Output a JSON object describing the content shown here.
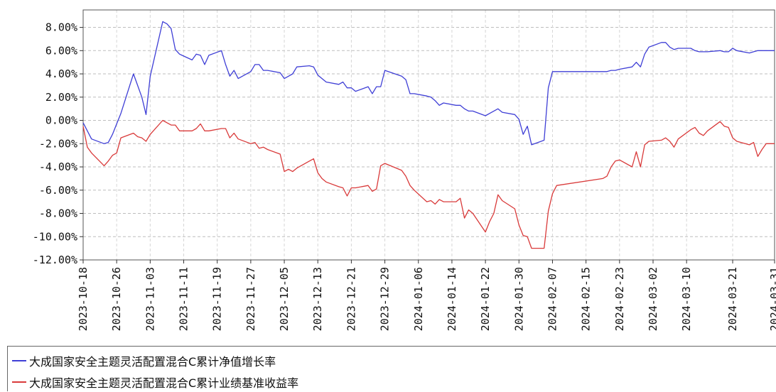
{
  "chart_data": {
    "type": "line",
    "title": "",
    "xlabel": "",
    "ylabel": "",
    "y_unit": "%",
    "ylim": [
      -12,
      9.5
    ],
    "xlim": [
      "2023-10-18",
      "2024-03-31"
    ],
    "yticks": [
      8,
      6,
      4,
      2,
      0,
      -2,
      -4,
      -6,
      -8,
      -10,
      -12
    ],
    "ytick_labels": [
      "8.00%",
      "6.00%",
      "4.00%",
      "2.00%",
      "0.00%",
      "-2.00%",
      "-4.00%",
      "-6.00%",
      "-8.00%",
      "-10.00%",
      "-12.00%"
    ],
    "xtick_labels": [
      "2023-10-18",
      "2023-10-26",
      "2023-11-03",
      "2023-11-11",
      "2023-11-19",
      "2023-11-27",
      "2023-12-05",
      "2023-12-13",
      "2023-12-21",
      "2023-12-29",
      "2024-01-06",
      "2024-01-14",
      "2024-01-22",
      "2024-01-30",
      "2024-02-07",
      "2024-02-15",
      "2024-02-23",
      "2024-03-02",
      "2024-03-10",
      "2024-03-21",
      "2024-03-31"
    ],
    "grid": true,
    "legend_position": "bottom",
    "series": [
      {
        "name": "大成国家安全主题灵活配置混合C累计净值增长率",
        "color": "#3f3fd6",
        "points": [
          [
            "2023-10-18",
            -0.2
          ],
          [
            "2023-10-20",
            -1.6
          ],
          [
            "2023-10-23",
            -2.0
          ],
          [
            "2023-10-24",
            -1.9
          ],
          [
            "2023-10-25",
            -1.2
          ],
          [
            "2023-10-26",
            -0.3
          ],
          [
            "2023-10-27",
            0.6
          ],
          [
            "2023-10-30",
            4.0
          ],
          [
            "2023-10-31",
            3.0
          ],
          [
            "2023-11-01",
            2.0
          ],
          [
            "2023-11-02",
            0.5
          ],
          [
            "2023-11-03",
            3.8
          ],
          [
            "2023-11-06",
            8.5
          ],
          [
            "2023-11-07",
            8.3
          ],
          [
            "2023-11-08",
            7.9
          ],
          [
            "2023-11-09",
            6.1
          ],
          [
            "2023-11-10",
            5.7
          ],
          [
            "2023-11-13",
            5.2
          ],
          [
            "2023-11-14",
            5.7
          ],
          [
            "2023-11-15",
            5.6
          ],
          [
            "2023-11-16",
            4.8
          ],
          [
            "2023-11-17",
            5.6
          ],
          [
            "2023-11-20",
            6.0
          ],
          [
            "2023-11-21",
            4.8
          ],
          [
            "2023-11-22",
            3.8
          ],
          [
            "2023-11-23",
            4.3
          ],
          [
            "2023-11-24",
            3.6
          ],
          [
            "2023-11-27",
            4.2
          ],
          [
            "2023-11-28",
            4.8
          ],
          [
            "2023-11-29",
            4.8
          ],
          [
            "2023-11-30",
            4.3
          ],
          [
            "2023-12-01",
            4.3
          ],
          [
            "2023-12-04",
            4.1
          ],
          [
            "2023-12-05",
            3.6
          ],
          [
            "2023-12-06",
            3.8
          ],
          [
            "2023-12-07",
            4.0
          ],
          [
            "2023-12-08",
            4.6
          ],
          [
            "2023-12-11",
            4.7
          ],
          [
            "2023-12-12",
            4.6
          ],
          [
            "2023-12-13",
            3.9
          ],
          [
            "2023-12-14",
            3.6
          ],
          [
            "2023-12-15",
            3.3
          ],
          [
            "2023-12-18",
            3.1
          ],
          [
            "2023-12-19",
            3.3
          ],
          [
            "2023-12-20",
            2.8
          ],
          [
            "2023-12-21",
            2.8
          ],
          [
            "2023-12-22",
            2.5
          ],
          [
            "2023-12-25",
            2.9
          ],
          [
            "2023-12-26",
            2.3
          ],
          [
            "2023-12-27",
            2.9
          ],
          [
            "2023-12-28",
            2.9
          ],
          [
            "2023-12-29",
            4.3
          ],
          [
            "2024-01-02",
            3.8
          ],
          [
            "2024-01-03",
            3.5
          ],
          [
            "2024-01-04",
            2.3
          ],
          [
            "2024-01-05",
            2.3
          ],
          [
            "2024-01-08",
            2.1
          ],
          [
            "2024-01-09",
            2.0
          ],
          [
            "2024-01-10",
            1.7
          ],
          [
            "2024-01-11",
            1.3
          ],
          [
            "2024-01-12",
            1.5
          ],
          [
            "2024-01-15",
            1.3
          ],
          [
            "2024-01-16",
            1.3
          ],
          [
            "2024-01-17",
            1.0
          ],
          [
            "2024-01-18",
            0.8
          ],
          [
            "2024-01-19",
            0.8
          ],
          [
            "2024-01-22",
            0.4
          ],
          [
            "2024-01-23",
            0.6
          ],
          [
            "2024-01-24",
            0.8
          ],
          [
            "2024-01-25",
            1.0
          ],
          [
            "2024-01-26",
            0.7
          ],
          [
            "2024-01-29",
            0.5
          ],
          [
            "2024-01-30",
            0.1
          ],
          [
            "2024-01-31",
            -1.2
          ],
          [
            "2024-02-01",
            -0.5
          ],
          [
            "2024-02-02",
            -2.1
          ],
          [
            "2024-02-05",
            -1.7
          ],
          [
            "2024-02-06",
            2.8
          ],
          [
            "2024-02-07",
            4.2
          ],
          [
            "2024-02-08",
            4.2
          ],
          [
            "2024-02-19",
            4.2
          ],
          [
            "2024-02-20",
            4.2
          ],
          [
            "2024-02-21",
            4.3
          ],
          [
            "2024-02-22",
            4.3
          ],
          [
            "2024-02-23",
            4.4
          ],
          [
            "2024-02-26",
            4.6
          ],
          [
            "2024-02-27",
            5.0
          ],
          [
            "2024-02-28",
            4.6
          ],
          [
            "2024-02-29",
            5.7
          ],
          [
            "2024-03-01",
            6.3
          ],
          [
            "2024-03-04",
            6.7
          ],
          [
            "2024-03-05",
            6.7
          ],
          [
            "2024-03-06",
            6.3
          ],
          [
            "2024-03-07",
            6.1
          ],
          [
            "2024-03-08",
            6.2
          ],
          [
            "2024-03-11",
            6.2
          ],
          [
            "2024-03-12",
            6.0
          ],
          [
            "2024-03-13",
            5.9
          ],
          [
            "2024-03-14",
            5.9
          ],
          [
            "2024-03-15",
            5.9
          ],
          [
            "2024-03-18",
            6.0
          ],
          [
            "2024-03-19",
            5.9
          ],
          [
            "2024-03-20",
            5.9
          ],
          [
            "2024-03-21",
            6.2
          ],
          [
            "2024-03-22",
            6.0
          ],
          [
            "2024-03-25",
            5.8
          ],
          [
            "2024-03-26",
            5.9
          ],
          [
            "2024-03-27",
            6.0
          ],
          [
            "2024-03-28",
            6.0
          ],
          [
            "2024-03-29",
            6.0
          ],
          [
            "2024-03-31",
            6.0
          ]
        ]
      },
      {
        "name": "大成国家安全主题灵活配置混合C累计业绩基准收益率",
        "color": "#d93a3a",
        "points": [
          [
            "2023-10-18",
            -0.5
          ],
          [
            "2023-10-19",
            -2.3
          ],
          [
            "2023-10-20",
            -2.8
          ],
          [
            "2023-10-23",
            -3.9
          ],
          [
            "2023-10-24",
            -3.5
          ],
          [
            "2023-10-25",
            -3.0
          ],
          [
            "2023-10-26",
            -2.8
          ],
          [
            "2023-10-27",
            -1.5
          ],
          [
            "2023-10-30",
            -1.1
          ],
          [
            "2023-10-31",
            -1.4
          ],
          [
            "2023-11-01",
            -1.5
          ],
          [
            "2023-11-02",
            -1.8
          ],
          [
            "2023-11-03",
            -1.2
          ],
          [
            "2023-11-06",
            0.0
          ],
          [
            "2023-11-07",
            -0.2
          ],
          [
            "2023-11-08",
            -0.4
          ],
          [
            "2023-11-09",
            -0.4
          ],
          [
            "2023-11-10",
            -0.9
          ],
          [
            "2023-11-13",
            -0.9
          ],
          [
            "2023-11-14",
            -0.7
          ],
          [
            "2023-11-15",
            -0.3
          ],
          [
            "2023-11-16",
            -0.9
          ],
          [
            "2023-11-17",
            -0.9
          ],
          [
            "2023-11-20",
            -0.7
          ],
          [
            "2023-11-21",
            -0.7
          ],
          [
            "2023-11-22",
            -1.5
          ],
          [
            "2023-11-23",
            -1.1
          ],
          [
            "2023-11-24",
            -1.6
          ],
          [
            "2023-11-27",
            -2.0
          ],
          [
            "2023-11-28",
            -1.9
          ],
          [
            "2023-11-29",
            -2.4
          ],
          [
            "2023-11-30",
            -2.3
          ],
          [
            "2023-12-01",
            -2.5
          ],
          [
            "2023-12-04",
            -2.9
          ],
          [
            "2023-12-05",
            -4.4
          ],
          [
            "2023-12-06",
            -4.2
          ],
          [
            "2023-12-07",
            -4.4
          ],
          [
            "2023-12-08",
            -4.1
          ],
          [
            "2023-12-11",
            -3.5
          ],
          [
            "2023-12-12",
            -3.3
          ],
          [
            "2023-12-13",
            -4.5
          ],
          [
            "2023-12-14",
            -5.0
          ],
          [
            "2023-12-15",
            -5.3
          ],
          [
            "2023-12-18",
            -5.7
          ],
          [
            "2023-12-19",
            -5.8
          ],
          [
            "2023-12-20",
            -6.5
          ],
          [
            "2023-12-21",
            -5.8
          ],
          [
            "2023-12-22",
            -5.8
          ],
          [
            "2023-12-25",
            -5.6
          ],
          [
            "2023-12-26",
            -6.1
          ],
          [
            "2023-12-27",
            -5.9
          ],
          [
            "2023-12-28",
            -3.9
          ],
          [
            "2023-12-29",
            -3.7
          ],
          [
            "2024-01-02",
            -4.3
          ],
          [
            "2024-01-03",
            -4.8
          ],
          [
            "2024-01-04",
            -5.6
          ],
          [
            "2024-01-05",
            -6.0
          ],
          [
            "2024-01-08",
            -7.0
          ],
          [
            "2024-01-09",
            -6.9
          ],
          [
            "2024-01-10",
            -7.2
          ],
          [
            "2024-01-11",
            -6.8
          ],
          [
            "2024-01-12",
            -7.0
          ],
          [
            "2024-01-15",
            -7.0
          ],
          [
            "2024-01-16",
            -6.7
          ],
          [
            "2024-01-17",
            -8.4
          ],
          [
            "2024-01-18",
            -7.7
          ],
          [
            "2024-01-19",
            -8.0
          ],
          [
            "2024-01-22",
            -9.6
          ],
          [
            "2024-01-23",
            -8.7
          ],
          [
            "2024-01-24",
            -8.0
          ],
          [
            "2024-01-25",
            -6.4
          ],
          [
            "2024-01-26",
            -6.9
          ],
          [
            "2024-01-29",
            -7.6
          ],
          [
            "2024-01-30",
            -9.0
          ],
          [
            "2024-01-31",
            -9.9
          ],
          [
            "2024-02-01",
            -10.0
          ],
          [
            "2024-02-02",
            -11.0
          ],
          [
            "2024-02-05",
            -11.0
          ],
          [
            "2024-02-06",
            -7.8
          ],
          [
            "2024-02-07",
            -6.3
          ],
          [
            "2024-02-08",
            -5.6
          ],
          [
            "2024-02-19",
            -5.0
          ],
          [
            "2024-02-20",
            -4.8
          ],
          [
            "2024-02-21",
            -4.0
          ],
          [
            "2024-02-22",
            -3.5
          ],
          [
            "2024-02-23",
            -3.4
          ],
          [
            "2024-02-26",
            -4.0
          ],
          [
            "2024-02-27",
            -2.7
          ],
          [
            "2024-02-28",
            -4.0
          ],
          [
            "2024-02-29",
            -2.1
          ],
          [
            "2024-03-01",
            -1.8
          ],
          [
            "2024-03-04",
            -1.7
          ],
          [
            "2024-03-05",
            -1.5
          ],
          [
            "2024-03-06",
            -1.8
          ],
          [
            "2024-03-07",
            -2.3
          ],
          [
            "2024-03-08",
            -1.6
          ],
          [
            "2024-03-11",
            -0.8
          ],
          [
            "2024-03-12",
            -0.6
          ],
          [
            "2024-03-13",
            -1.1
          ],
          [
            "2024-03-14",
            -1.3
          ],
          [
            "2024-03-15",
            -0.9
          ],
          [
            "2024-03-18",
            -0.1
          ],
          [
            "2024-03-19",
            -0.5
          ],
          [
            "2024-03-20",
            -0.6
          ],
          [
            "2024-03-21",
            -1.5
          ],
          [
            "2024-03-22",
            -1.8
          ],
          [
            "2024-03-25",
            -2.1
          ],
          [
            "2024-03-26",
            -1.9
          ],
          [
            "2024-03-27",
            -3.1
          ],
          [
            "2024-03-28",
            -2.5
          ],
          [
            "2024-03-29",
            -2.0
          ],
          [
            "2024-03-31",
            -2.0
          ]
        ]
      }
    ]
  }
}
